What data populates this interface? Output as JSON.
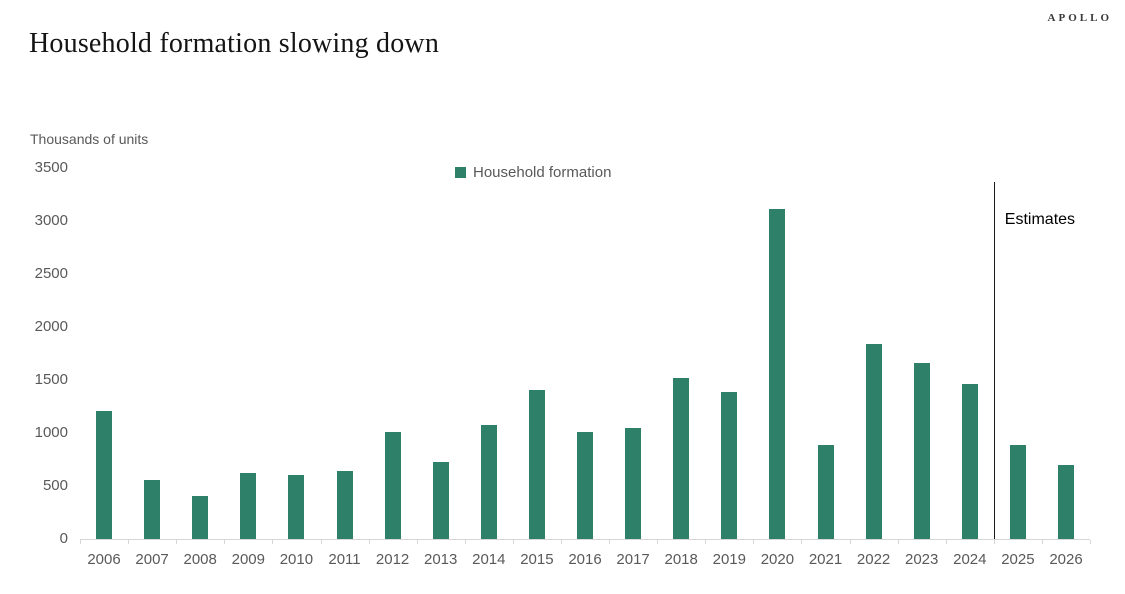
{
  "brand": {
    "logo": "APOLLO"
  },
  "title": "Household formation slowing down",
  "chart_data": {
    "type": "bar",
    "title": "Household formation slowing down",
    "ylabel": "Thousands of units",
    "legend": {
      "label": "Household formation",
      "position": "top-center"
    },
    "bar_color": "#2f8068",
    "grid": false,
    "categories": [
      "2006",
      "2007",
      "2008",
      "2009",
      "2010",
      "2011",
      "2012",
      "2013",
      "2014",
      "2015",
      "2016",
      "2017",
      "2018",
      "2019",
      "2020",
      "2021",
      "2022",
      "2023",
      "2024",
      "2025",
      "2026"
    ],
    "values": [
      1210,
      560,
      410,
      620,
      600,
      640,
      1010,
      730,
      1080,
      1410,
      1010,
      1050,
      1520,
      1390,
      3110,
      890,
      1840,
      1660,
      1460,
      890,
      700
    ],
    "ylim": [
      0,
      3500
    ],
    "yticks": [
      0,
      500,
      1000,
      1500,
      2000,
      2500,
      3000,
      3500
    ],
    "annotation": {
      "label": "Estimates",
      "separator_after": "2024"
    }
  }
}
